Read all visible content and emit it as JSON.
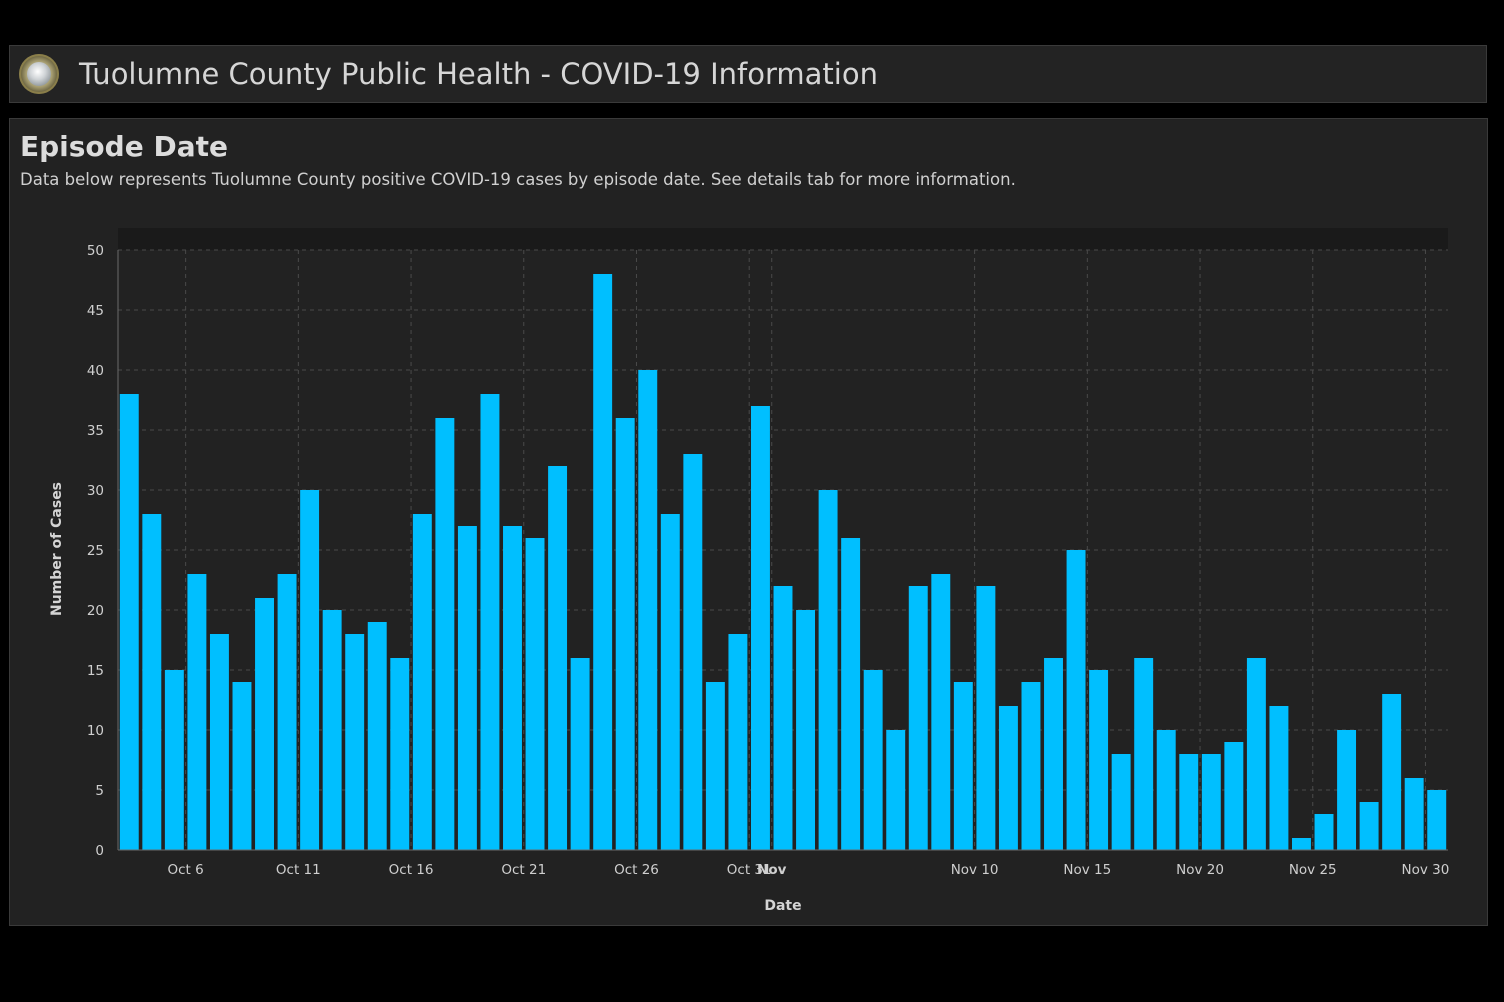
{
  "header": {
    "title": "Tuolumne County Public Health - COVID-19 Information",
    "logo_icon": "county-seal-icon"
  },
  "panel": {
    "title": "Episode Date",
    "description": "Data below represents Tuolumne County positive COVID-19 cases by episode date. See details tab for more information."
  },
  "colors": {
    "background": "#000000",
    "panel": "#222222",
    "bar": "#00bfff",
    "grid": "#4a4a4a",
    "text": "#cfcfcf"
  },
  "chart_data": {
    "type": "bar",
    "xlabel": "Date",
    "ylabel": "Number of Cases",
    "ylim": [
      0,
      50
    ],
    "yticks": [
      0,
      5,
      10,
      15,
      20,
      25,
      30,
      35,
      40,
      45,
      50
    ],
    "grid": true,
    "x_start_date": "Oct 3",
    "x_tick_labels": [
      {
        "label": "Oct 6",
        "bar_index": 3,
        "bold": false
      },
      {
        "label": "Oct 11",
        "bar_index": 8,
        "bold": false
      },
      {
        "label": "Oct 16",
        "bar_index": 13,
        "bold": false
      },
      {
        "label": "Oct 21",
        "bar_index": 18,
        "bold": false
      },
      {
        "label": "Oct 26",
        "bar_index": 23,
        "bold": false
      },
      {
        "label": "Oct 31",
        "bar_index": 28,
        "bold": false
      },
      {
        "label": "Nov",
        "bar_index": 29,
        "bold": true
      },
      {
        "label": "Nov 10",
        "bar_index": 38,
        "bold": false
      },
      {
        "label": "Nov 15",
        "bar_index": 43,
        "bold": false
      },
      {
        "label": "Nov 20",
        "bar_index": 48,
        "bold": false
      },
      {
        "label": "Nov 25",
        "bar_index": 53,
        "bold": false
      },
      {
        "label": "Nov 30",
        "bar_index": 58,
        "bold": false
      }
    ],
    "values": [
      38,
      28,
      15,
      23,
      18,
      14,
      21,
      23,
      30,
      20,
      18,
      19,
      16,
      28,
      36,
      27,
      38,
      27,
      26,
      32,
      16,
      48,
      36,
      40,
      28,
      33,
      14,
      18,
      37,
      22,
      20,
      30,
      26,
      15,
      10,
      22,
      23,
      14,
      22,
      12,
      14,
      16,
      25,
      15,
      8,
      16,
      10,
      8,
      8,
      9,
      16,
      12,
      1,
      3,
      10,
      4,
      13,
      6,
      5
    ]
  }
}
